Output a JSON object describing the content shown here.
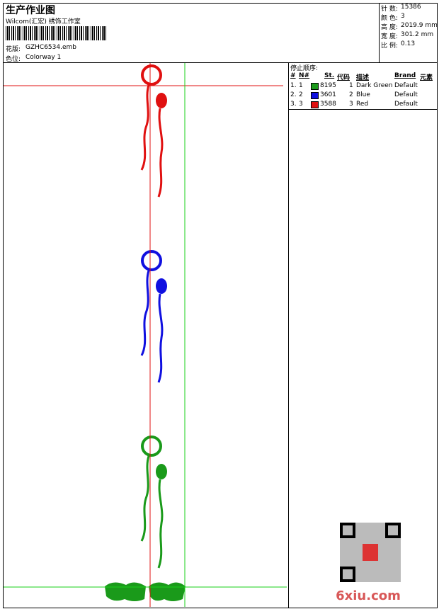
{
  "header": {
    "title": "生产作业图",
    "company": "Wilcom(汇宏) 绣饰工作室",
    "design_label": "花版:",
    "design_value": "GZHC6534.emb",
    "colorway_label": "色位:",
    "colorway_value": "Colorway 1"
  },
  "stats": [
    [
      "针 数:",
      "15386"
    ],
    [
      "颜 色:",
      "3"
    ],
    [
      "高 度:",
      "2019.9 mm"
    ],
    [
      "宽 度:",
      "301.2 mm"
    ],
    [
      "比 例:",
      "0.13"
    ]
  ],
  "table": {
    "caption": "停止顺序:",
    "columns": [
      "#",
      "N#",
      "St.",
      "代码",
      "描述",
      "Brand",
      "元素"
    ],
    "rows": [
      {
        "index": "1.",
        "n": "1",
        "color": "#1a9a1a",
        "stitches": "8195",
        "code": "1",
        "description": "Dark Green",
        "brand": "Default"
      },
      {
        "index": "2.",
        "n": "2",
        "color": "#1010e0",
        "stitches": "3601",
        "code": "2",
        "description": "Blue",
        "brand": "Default"
      },
      {
        "index": "3.",
        "n": "3",
        "color": "#e01010",
        "stitches": "3588",
        "code": "3",
        "description": "Red",
        "brand": "Default"
      }
    ]
  },
  "watermark": "6xiu.com"
}
